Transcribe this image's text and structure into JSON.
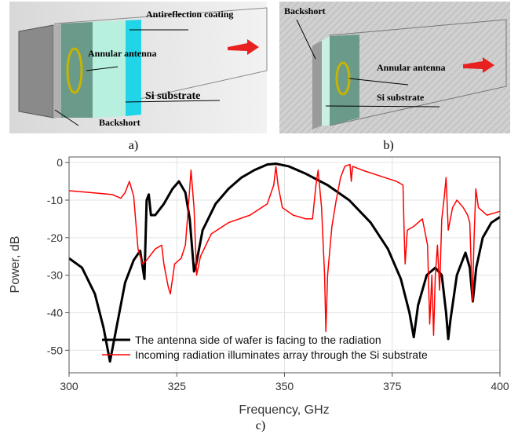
{
  "panel_a": {
    "caption": "a)",
    "labels": {
      "coating": "Antireflection coating",
      "antenna": "Annular antenna",
      "substrate": "Si substrate",
      "backshort": "Backshort"
    }
  },
  "panel_b": {
    "caption": "b)",
    "labels": {
      "backshort": "Backshort",
      "antenna": "Annular antenna",
      "substrate": "Si substrate"
    }
  },
  "caption_c": "c)",
  "chart_data": {
    "type": "line",
    "xlabel": "Frequency, GHz",
    "ylabel": "Power, dB",
    "xlim": [
      300,
      400
    ],
    "ylim": [
      -56,
      1.5
    ],
    "xticks": [
      300,
      325,
      350,
      375,
      400
    ],
    "yticks": [
      0,
      -10,
      -20,
      -30,
      -40,
      -50
    ],
    "legend": "lower center",
    "series": [
      {
        "name": "The antenna side of wafer is facing to the radiation",
        "color": "#000000",
        "x": [
          300,
          303,
          306,
          308,
          309.5,
          311,
          313,
          315,
          316.5,
          317.5,
          318,
          318.5,
          319,
          320,
          322,
          324,
          325.5,
          327,
          328,
          329,
          329.5,
          331,
          334,
          337,
          340,
          343,
          346,
          348,
          351,
          355,
          360,
          365,
          370,
          374,
          377,
          379,
          380,
          381,
          383,
          385,
          386.5,
          387.5,
          388,
          388.5,
          390,
          392,
          393,
          393.7,
          394.5,
          396,
          398,
          400
        ],
        "values": [
          -25.5,
          -28,
          -35,
          -44,
          -53,
          -44,
          -32,
          -26,
          -23.5,
          -31,
          -10,
          -8.5,
          -14,
          -14,
          -11,
          -7,
          -5,
          -8,
          -15,
          -29,
          -27,
          -18,
          -11,
          -7,
          -4,
          -2,
          -0.5,
          -0.3,
          -1,
          -3,
          -6,
          -10,
          -16,
          -23,
          -31,
          -40,
          -46.5,
          -38,
          -30,
          -28,
          -30,
          -40,
          -47,
          -42,
          -30,
          -24,
          -28,
          -37,
          -28,
          -20,
          -16,
          -14.5
        ]
      },
      {
        "name": "Incoming radiation illuminates array through the Si substrate",
        "color": "#ff0000",
        "x": [
          300,
          305,
          310,
          312,
          313,
          314,
          315,
          316,
          317,
          318,
          320,
          321.5,
          322,
          323,
          323.5,
          324.5,
          326,
          327,
          327.8,
          328.3,
          329,
          329.6,
          330.5,
          333,
          337,
          342,
          346,
          347.5,
          348,
          348.5,
          349.5,
          352,
          355,
          356.5,
          357.3,
          357.8,
          358.6,
          359.3,
          359.6,
          360,
          361,
          362,
          363,
          364,
          365.2,
          365.5,
          365.8,
          368,
          372,
          376,
          377.5,
          377.8,
          378,
          378.5,
          380,
          382,
          383.2,
          383.7,
          384.2,
          384.6,
          385,
          385.5,
          386,
          386.5,
          387,
          387.5,
          388,
          389,
          390,
          391.5,
          392.5,
          393,
          393.6,
          394,
          394.4,
          395,
          397,
          400
        ],
        "values": [
          -7.5,
          -8,
          -8.5,
          -9.5,
          -8,
          -5,
          -9,
          -23,
          -27,
          -26,
          -23,
          -22,
          -27,
          -33,
          -35,
          -27,
          -25.5,
          -22,
          -10,
          -2,
          -12,
          -30,
          -25,
          -19,
          -16,
          -14,
          -11,
          -6,
          -1,
          -6,
          -12,
          -14,
          -15,
          -15,
          -6,
          -2,
          -12,
          -30,
          -45,
          -30,
          -17,
          -10,
          -4,
          -1,
          -0.5,
          -5,
          -1,
          -2,
          -3.5,
          -5,
          -6,
          -20,
          -27,
          -18,
          -17,
          -15,
          -22,
          -43,
          -30,
          -46,
          -30,
          -22,
          -34,
          -15,
          -10,
          -4,
          -18,
          -12,
          -10,
          -12,
          -14,
          -16,
          -37,
          -20,
          -7,
          -12,
          -14,
          -13
        ]
      }
    ]
  }
}
